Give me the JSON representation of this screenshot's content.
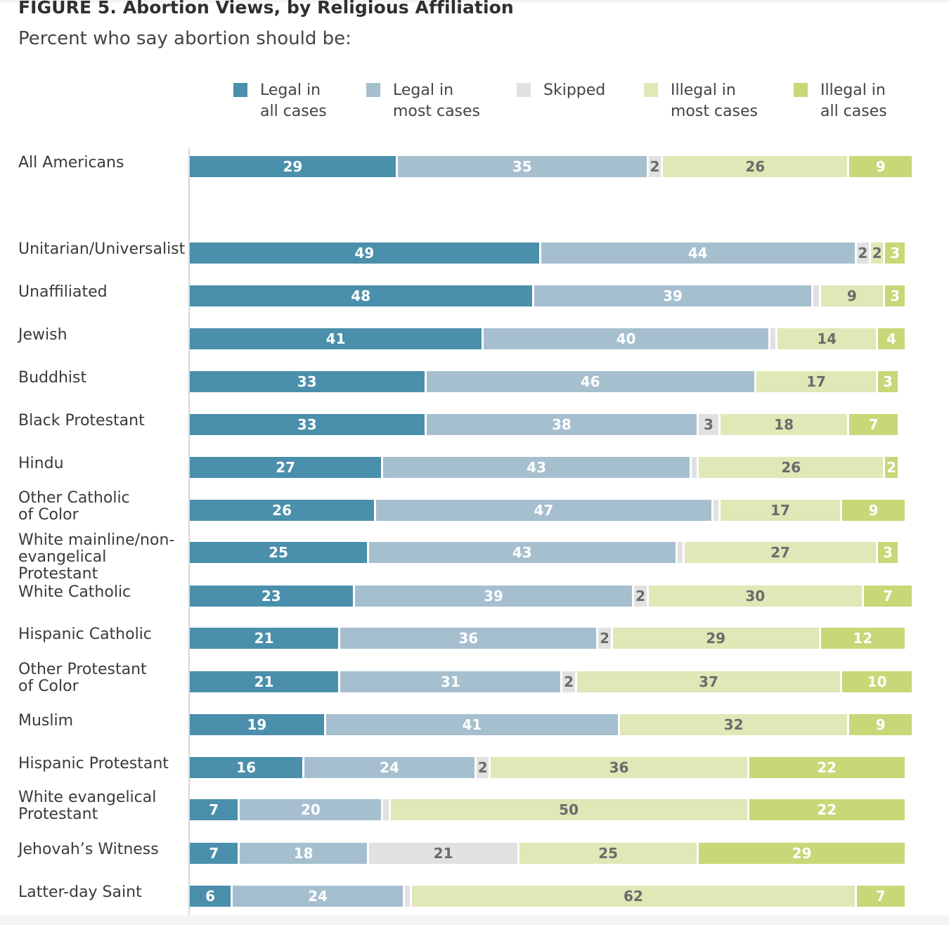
{
  "chart_data": {
    "type": "bar",
    "orientation": "horizontal-stacked",
    "title": "FIGURE 5. Abortion Views, by Religious Affiliation",
    "subtitle": "Percent who say abortion should be:",
    "xlim": [
      0,
      100
    ],
    "series": [
      {
        "name": "Legal in\nall cases",
        "color": "#4a8fab",
        "text_color": "#ffffff"
      },
      {
        "name": "Legal in\nmost cases",
        "color": "#a6bfcf",
        "text_color": "#ffffff"
      },
      {
        "name": "Skipped",
        "color": "#e1e1e1",
        "text_color": "#6b6b6b"
      },
      {
        "name": "Illegal in\nmost cases",
        "color": "#dfe8b6",
        "text_color": "#6b6b6b"
      },
      {
        "name": "Illegal in\nall cases",
        "color": "#c6d877",
        "text_color": "#ffffff"
      }
    ],
    "categories": [
      "All Americans",
      "Unitarian/Universalist",
      "Unaffiliated",
      "Jewish",
      "Buddhist",
      "Black Protestant",
      "Hindu",
      "Other Catholic\nof Color",
      "White mainline/non-\nevangelical Protestant",
      "White Catholic",
      "Hispanic Catholic",
      "Other Protestant\nof Color",
      "Muslim",
      "Hispanic Protestant",
      "White evangelical\nProtestant",
      "Jehovah’s Witness",
      "Latter-day Saint"
    ],
    "values": [
      [
        29,
        35,
        2,
        26,
        9
      ],
      [
        49,
        44,
        2,
        2,
        3
      ],
      [
        48,
        39,
        1,
        9,
        3
      ],
      [
        41,
        40,
        1,
        14,
        4
      ],
      [
        33,
        46,
        0,
        17,
        3
      ],
      [
        33,
        38,
        3,
        18,
        7
      ],
      [
        27,
        43,
        1,
        26,
        2
      ],
      [
        26,
        47,
        1,
        17,
        9
      ],
      [
        25,
        43,
        1,
        27,
        3
      ],
      [
        23,
        39,
        2,
        30,
        7
      ],
      [
        21,
        36,
        2,
        29,
        12
      ],
      [
        21,
        31,
        2,
        37,
        10
      ],
      [
        19,
        41,
        0,
        32,
        9
      ],
      [
        16,
        24,
        2,
        36,
        22
      ],
      [
        7,
        20,
        1,
        50,
        22
      ],
      [
        7,
        18,
        21,
        25,
        29
      ],
      [
        6,
        24,
        1,
        62,
        7
      ]
    ],
    "labels": [
      [
        "29",
        "35",
        "2",
        "26",
        "9"
      ],
      [
        "49",
        "44",
        "2",
        "2",
        "3"
      ],
      [
        "48",
        "39",
        "",
        "9",
        "3"
      ],
      [
        "41",
        "40",
        "",
        "14",
        "4"
      ],
      [
        "33",
        "46",
        "",
        "17",
        "3"
      ],
      [
        "33",
        "38",
        "3",
        "18",
        "7"
      ],
      [
        "27",
        "43",
        "",
        "26",
        "2"
      ],
      [
        "26",
        "47",
        "",
        "17",
        "9"
      ],
      [
        "25",
        "43",
        "",
        "27",
        "3"
      ],
      [
        "23",
        "39",
        "2",
        "30",
        "7"
      ],
      [
        "21",
        "36",
        "2",
        "29",
        "12"
      ],
      [
        "21",
        "31",
        "2",
        "37",
        "10"
      ],
      [
        "19",
        "41",
        "",
        "32",
        "9"
      ],
      [
        "16",
        "24",
        "2",
        "36",
        "22"
      ],
      [
        "7",
        "20",
        "",
        "50",
        "22"
      ],
      [
        "7",
        "18",
        "21",
        "25",
        "29"
      ],
      [
        "6",
        "24",
        "",
        "62",
        "7"
      ]
    ]
  }
}
